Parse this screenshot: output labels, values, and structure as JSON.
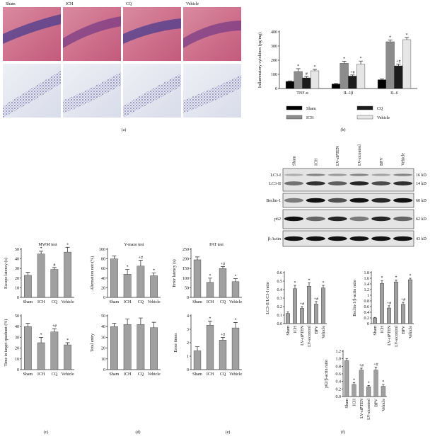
{
  "panel_labels": [
    "(a)",
    "(b)",
    "(c)",
    "(d)",
    "(e)",
    "(f)"
  ],
  "micrographs": {
    "labels": [
      "Sham",
      "ICH",
      "CQ",
      "Vehicle"
    ]
  },
  "blot": {
    "lanes": [
      "Sham",
      "ICH",
      "LV-siPTEN",
      "LV-sicontrol",
      "BPV",
      "Vehicle"
    ],
    "bands": [
      "LC3-I",
      "LC3-II",
      "Beclin-1",
      "p62",
      "β-Actin"
    ],
    "sizes": [
      "16 kD",
      "14 kD",
      "60 kD",
      "62 kD",
      "43 kD"
    ]
  },
  "chart_data": [
    {
      "type": "bar",
      "ylabel": "Inflammatory cytokines (pg/mg)",
      "categories": [
        "TNF-α",
        "IL-1β",
        "IL-6"
      ],
      "series": [
        {
          "name": "Sham",
          "color": "#000000",
          "values": [
            50,
            32,
            62
          ],
          "errors": [
            4,
            4,
            6
          ],
          "marks": [
            null,
            null,
            null
          ]
        },
        {
          "name": "ICH",
          "color": "#8c8c8c",
          "values": [
            120,
            178,
            330
          ],
          "errors": [
            20,
            15,
            12
          ],
          "marks": [
            "*",
            "*",
            "*"
          ]
        },
        {
          "name": "CQ",
          "color": "#1c1c1c",
          "values": [
            75,
            88,
            160
          ],
          "errors": [
            10,
            8,
            12
          ],
          "marks": [
            "#",
            "+#",
            "+#"
          ]
        },
        {
          "name": "Vehicle",
          "color": "#e6e6e6",
          "values": [
            125,
            172,
            345
          ],
          "errors": [
            10,
            22,
            15
          ],
          "marks": [
            "*",
            "*",
            "*"
          ]
        }
      ],
      "ylim": [
        0,
        400
      ],
      "yticks": [
        0,
        100,
        200,
        300,
        400
      ],
      "legend": "bottom"
    },
    {
      "type": "bar",
      "title": "MWM test",
      "ylabel": "Escape latency (s)",
      "categories": [
        "Sham",
        "ICH",
        "CQ",
        "Vehicle"
      ],
      "series": [
        {
          "color": "#a0a0a0",
          "values": [
            23,
            45,
            29,
            47
          ],
          "errors": [
            3,
            3,
            2,
            5
          ],
          "marks": [
            null,
            "*",
            "#",
            "*"
          ]
        }
      ],
      "ylim": [
        0,
        50
      ],
      "yticks": [
        0,
        10,
        20,
        30,
        40,
        50
      ]
    },
    {
      "type": "bar",
      "ylabel": "Time in target quadrant (%)",
      "categories": [
        "Sham",
        "ICH",
        "CQ",
        "Vehicle"
      ],
      "series": [
        {
          "color": "#a0a0a0",
          "values": [
            40,
            25,
            35,
            23
          ],
          "errors": [
            3,
            5,
            3,
            2
          ],
          "marks": [
            null,
            "*",
            "+#",
            "*"
          ]
        }
      ],
      "ylim": [
        0,
        50
      ],
      "yticks": [
        0,
        10,
        20,
        30,
        40,
        50
      ]
    },
    {
      "type": "bar",
      "title": "Y-maze test",
      "ylabel": "Alternation rate (%)",
      "categories": [
        "Sham",
        "ICH",
        "CQ",
        "Vehicle"
      ],
      "series": [
        {
          "color": "#a0a0a0",
          "values": [
            80,
            48,
            65,
            45
          ],
          "errors": [
            6,
            10,
            12,
            6
          ],
          "marks": [
            null,
            "*",
            "+#",
            "*"
          ]
        }
      ],
      "ylim": [
        0,
        100
      ],
      "yticks": [
        0,
        20,
        40,
        60,
        80,
        100
      ]
    },
    {
      "type": "bar",
      "ylabel": "Total entry",
      "categories": [
        "Sham",
        "ICH",
        "CQ",
        "Vehicle"
      ],
      "series": [
        {
          "color": "#a0a0a0",
          "values": [
            40,
            42,
            42,
            39
          ],
          "errors": [
            3,
            5,
            6,
            5
          ],
          "marks": [
            null,
            null,
            null,
            null
          ]
        }
      ],
      "ylim": [
        0,
        50
      ],
      "yticks": [
        0,
        10,
        20,
        30,
        40,
        50
      ]
    },
    {
      "type": "bar",
      "title": "PAT test",
      "ylabel": "Error latency (s)",
      "categories": [
        "Sham",
        "ICH",
        "CQ",
        "Vehicle"
      ],
      "series": [
        {
          "color": "#a0a0a0",
          "values": [
            195,
            78,
            150,
            82
          ],
          "errors": [
            15,
            22,
            10,
            15
          ],
          "marks": [
            null,
            "*",
            "+#",
            "*"
          ]
        }
      ],
      "ylim": [
        0,
        250
      ],
      "yticks": [
        0,
        50,
        100,
        150,
        200,
        250
      ]
    },
    {
      "type": "bar",
      "ylabel": "Error times",
      "categories": [
        "Sham",
        "ICH",
        "CQ",
        "Vehicle"
      ],
      "series": [
        {
          "color": "#a0a0a0",
          "values": [
            1.4,
            3.3,
            2.2,
            3.1
          ],
          "errors": [
            0.3,
            0.3,
            0.2,
            0.4
          ],
          "marks": [
            null,
            "*",
            "+#",
            "*"
          ]
        }
      ],
      "ylim": [
        0,
        4
      ],
      "yticks": [
        0,
        1,
        2,
        3,
        4
      ]
    },
    {
      "type": "bar",
      "ylabel": "LC3-II/LC3-I ratio",
      "categories": [
        "Sham",
        "ICH",
        "LV-siPTEN",
        "LV-sicontrol",
        "BPV",
        "Vehicle"
      ],
      "series": [
        {
          "color": "#a0a0a0",
          "values": [
            0.12,
            0.41,
            0.18,
            0.44,
            0.23,
            0.42
          ],
          "errors": [
            0.02,
            0.04,
            0.02,
            0.04,
            0.03,
            0.03
          ],
          "marks": [
            null,
            "*",
            "+#",
            "*",
            "+#",
            "*"
          ]
        }
      ],
      "ylim": [
        0,
        0.6
      ],
      "yticks": [
        {
          "value": 0,
          "label": "0.0"
        },
        0.1,
        0.2,
        0.3,
        0.4,
        0.5,
        0.6
      ],
      "rotate_labels": true
    },
    {
      "type": "bar",
      "ylabel": "Beclin-1/β-actin ratio",
      "categories": [
        "Sham",
        "ICH",
        "LV-siPTEN",
        "LV-sicontrol",
        "BPV",
        "Vehicle"
      ],
      "series": [
        {
          "color": "#a0a0a0",
          "values": [
            0.2,
            1.42,
            0.55,
            1.47,
            0.68,
            1.55
          ],
          "errors": [
            0.02,
            0.1,
            0.08,
            0.07,
            0.07,
            0.05
          ],
          "marks": [
            null,
            "*",
            "+#",
            "*",
            "+#",
            "*"
          ]
        }
      ],
      "ylim": [
        0,
        1.8
      ],
      "yticks": [
        0,
        0.2,
        0.4,
        0.6,
        0.8,
        1,
        1.2,
        1.4,
        1.6,
        1.8
      ],
      "rotate_labels": true
    },
    {
      "type": "bar",
      "ylabel": "p62/β-actin ratio",
      "categories": [
        "Sham",
        "ICH",
        "LV-siPTEN",
        "LV-sicontrol",
        "BPV",
        "Vehicle"
      ],
      "series": [
        {
          "color": "#a0a0a0",
          "values": [
            0.95,
            0.32,
            0.7,
            0.26,
            0.7,
            0.27
          ],
          "errors": [
            0.05,
            0.05,
            0.05,
            0.03,
            0.08,
            0.05
          ],
          "marks": [
            null,
            "*",
            "+#",
            "*",
            "+#",
            "*"
          ]
        }
      ],
      "ylim": [
        0,
        1.2
      ],
      "yticks": [
        {
          "value": 0,
          "label": "0.0"
        },
        0.2,
        0.4,
        0.6,
        0.8,
        {
          "value": 1,
          "label": "1.0"
        },
        1.2
      ],
      "rotate_labels": true
    }
  ]
}
